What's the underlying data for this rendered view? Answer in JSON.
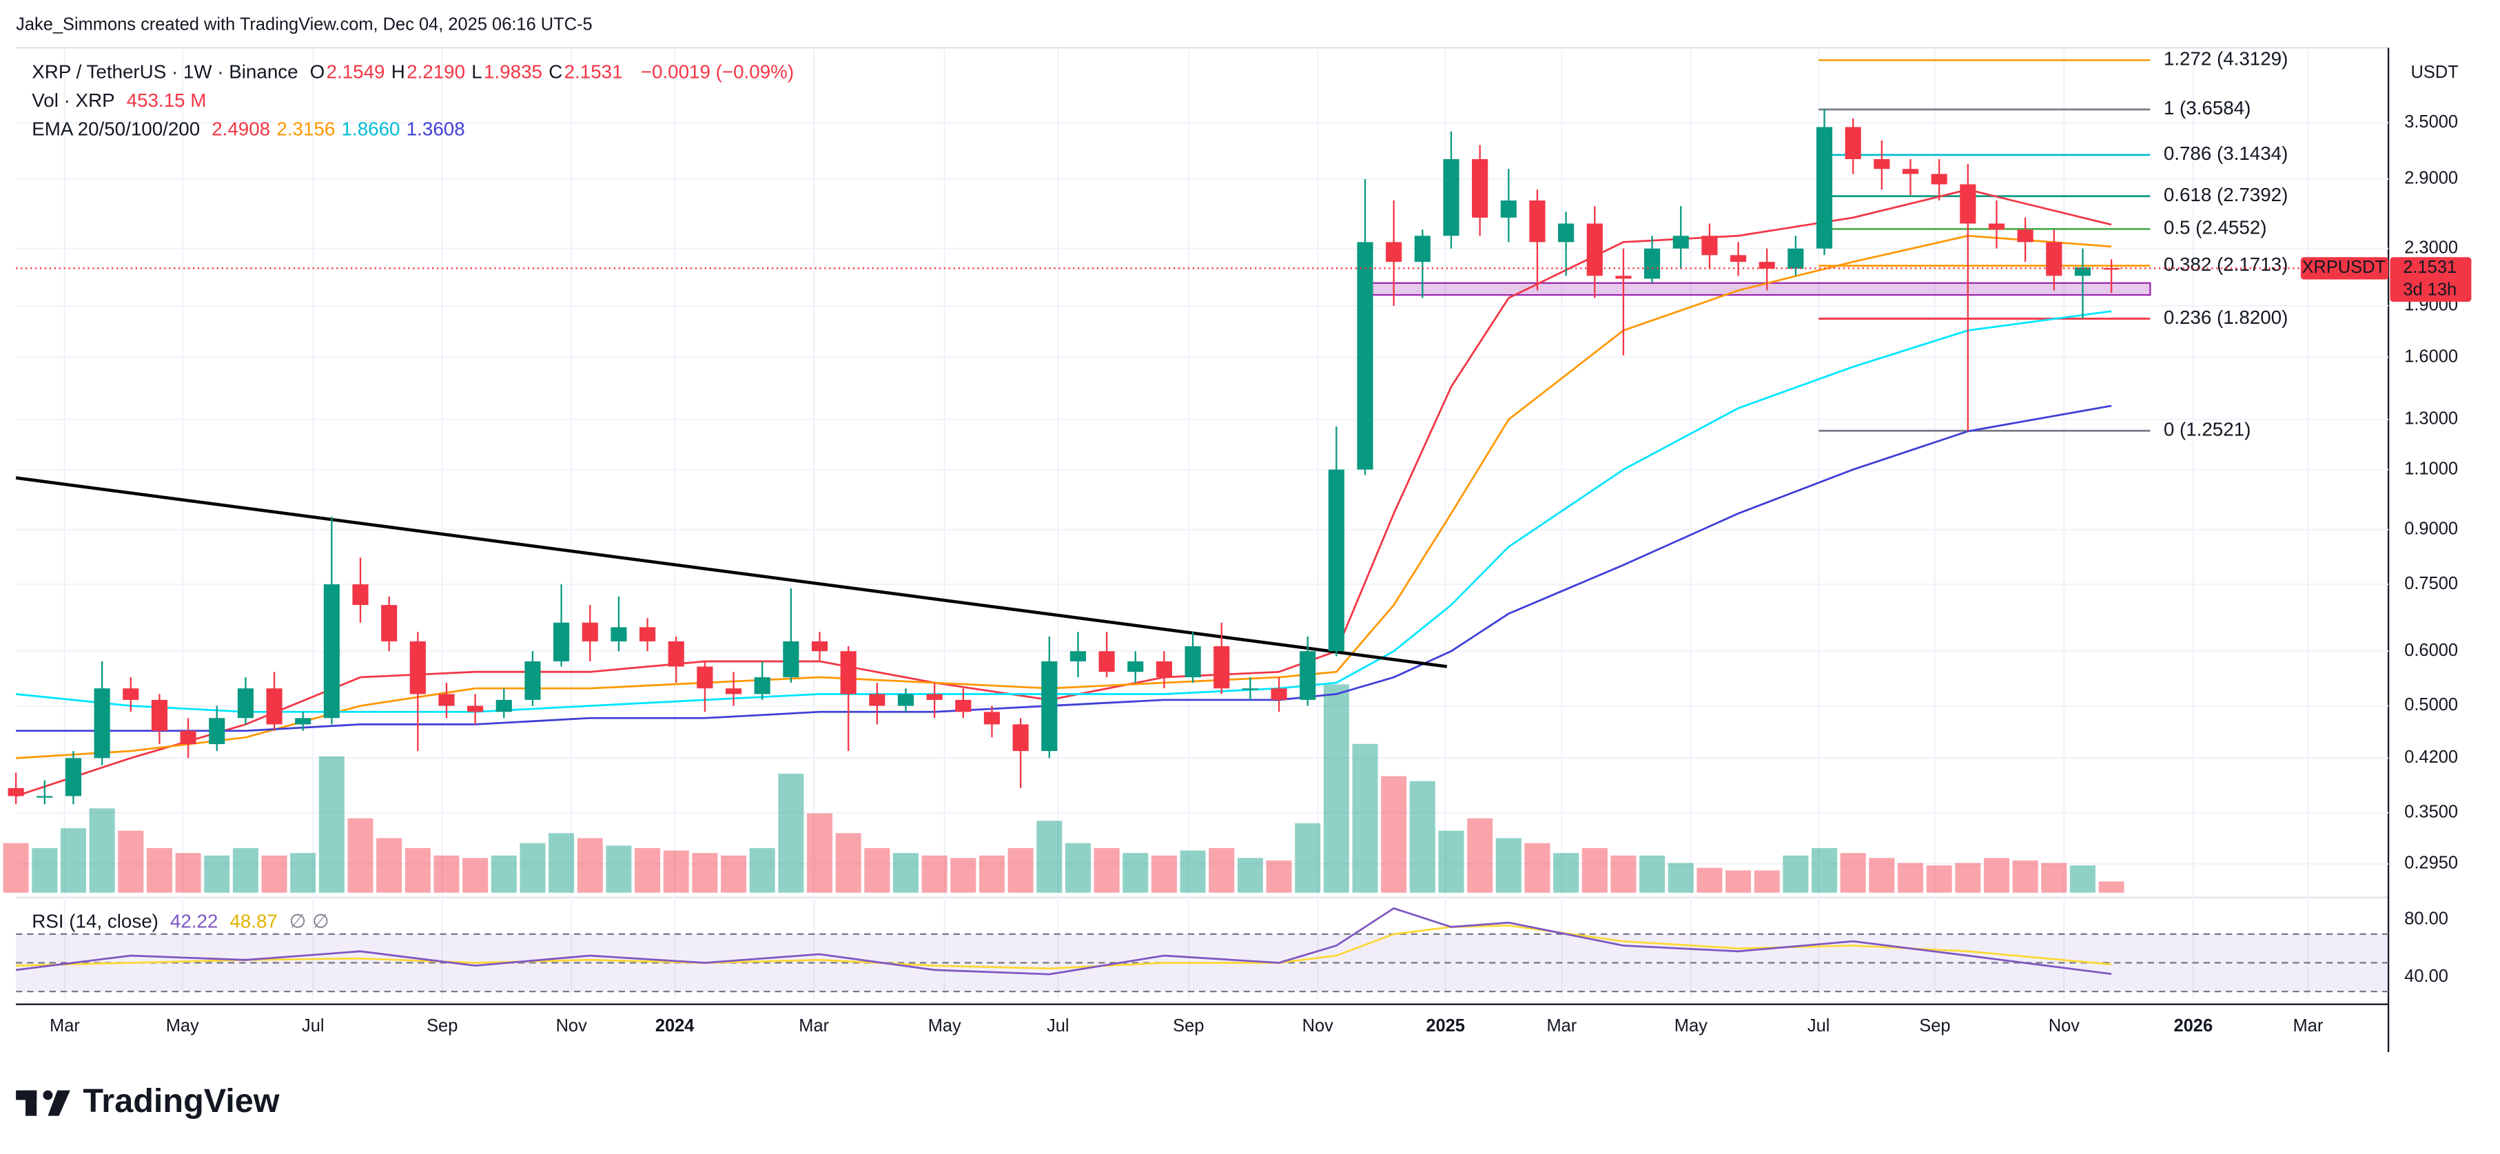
{
  "header": {
    "credit": "Jake_Simmons created with TradingView.com, Dec 04, 2025 06:16 UTC-5"
  },
  "chart_data": {
    "type": "candlestick",
    "title": "XRP / TetherUS · 1W · Binance",
    "ohlc": {
      "labels": [
        "O",
        "H",
        "L",
        "C"
      ],
      "values": [
        2.1549,
        2.219,
        1.9835,
        2.1531
      ],
      "value_labels": [
        "2.1549",
        "2.2190",
        "1.9835",
        "2.1531"
      ],
      "change": "−0.0019 (−0.09%)"
    },
    "volume_legend": {
      "label": "Vol · XRP",
      "value": "453.15 M"
    },
    "ema_legend": {
      "label": "EMA 20/50/100/200",
      "value_labels": [
        "2.4908",
        "2.3156",
        "1.8660",
        "1.3608"
      ]
    },
    "unit": "USDT",
    "symbol_tag": {
      "symbol": "XRPUSDT",
      "price": "2.1531",
      "countdown": "3d 13h"
    },
    "log_scale": true,
    "grid": true,
    "up_color": "#089981",
    "down_color": "#f23645",
    "x": [
      0,
      2,
      4,
      6,
      8,
      10,
      12,
      14,
      16,
      18,
      20,
      22,
      24,
      26,
      28,
      30,
      32,
      34,
      36,
      38,
      40,
      42,
      44,
      46,
      48,
      50,
      52,
      54,
      56,
      58,
      60,
      62,
      64,
      66,
      68,
      70,
      72,
      74,
      76,
      78,
      80,
      82,
      84,
      86,
      88,
      90,
      92,
      94,
      96,
      98,
      100,
      102,
      104,
      106,
      108,
      110,
      112,
      114,
      116,
      118,
      120,
      122,
      124,
      126,
      128,
      130,
      132,
      134,
      136,
      138,
      140,
      142,
      144,
      146
    ],
    "open": [
      0.38,
      0.37,
      0.37,
      0.42,
      0.53,
      0.51,
      0.46,
      0.44,
      0.48,
      0.53,
      0.47,
      0.48,
      0.75,
      0.7,
      0.62,
      0.52,
      0.5,
      0.49,
      0.51,
      0.58,
      0.66,
      0.62,
      0.65,
      0.62,
      0.57,
      0.53,
      0.52,
      0.55,
      0.62,
      0.6,
      0.52,
      0.5,
      0.52,
      0.51,
      0.49,
      0.47,
      0.43,
      0.58,
      0.6,
      0.56,
      0.58,
      0.55,
      0.61,
      0.53,
      0.53,
      0.51,
      0.6,
      1.1,
      2.35,
      2.2,
      2.4,
      3.1,
      2.55,
      2.7,
      2.35,
      2.5,
      2.1,
      2.08,
      2.3,
      2.4,
      2.25,
      2.2,
      2.15,
      2.3,
      3.45,
      3.1,
      3.0,
      2.95,
      2.85,
      2.5,
      2.45,
      2.35,
      2.1,
      2.1549
    ],
    "high": [
      0.4,
      0.39,
      0.43,
      0.58,
      0.55,
      0.52,
      0.48,
      0.5,
      0.55,
      0.56,
      0.49,
      0.94,
      0.82,
      0.72,
      0.64,
      0.54,
      0.52,
      0.53,
      0.6,
      0.75,
      0.7,
      0.72,
      0.67,
      0.63,
      0.58,
      0.56,
      0.58,
      0.74,
      0.64,
      0.61,
      0.54,
      0.53,
      0.54,
      0.53,
      0.5,
      0.48,
      0.63,
      0.64,
      0.64,
      0.6,
      0.6,
      0.64,
      0.66,
      0.55,
      0.55,
      0.63,
      1.27,
      2.9,
      2.7,
      2.45,
      3.4,
      3.25,
      3.0,
      2.8,
      2.6,
      2.65,
      2.3,
      2.4,
      2.65,
      2.5,
      2.35,
      2.3,
      2.4,
      3.66,
      3.55,
      3.3,
      3.1,
      3.1,
      3.05,
      2.7,
      2.55,
      2.45,
      2.3,
      2.219
    ],
    "low": [
      0.36,
      0.36,
      0.36,
      0.41,
      0.49,
      0.44,
      0.42,
      0.43,
      0.47,
      0.46,
      0.46,
      0.47,
      0.66,
      0.6,
      0.43,
      0.48,
      0.47,
      0.48,
      0.5,
      0.57,
      0.58,
      0.6,
      0.6,
      0.54,
      0.49,
      0.5,
      0.51,
      0.54,
      0.58,
      0.43,
      0.47,
      0.49,
      0.48,
      0.48,
      0.45,
      0.38,
      0.42,
      0.55,
      0.55,
      0.54,
      0.53,
      0.54,
      0.52,
      0.51,
      0.49,
      0.5,
      0.59,
      1.08,
      1.9,
      1.95,
      2.3,
      2.4,
      2.35,
      2.0,
      2.1,
      1.95,
      1.61,
      2.05,
      2.15,
      2.15,
      2.1,
      2.0,
      2.1,
      2.25,
      2.95,
      2.8,
      2.75,
      2.7,
      1.25,
      2.3,
      2.2,
      2.0,
      1.82,
      1.9835
    ],
    "close": [
      0.37,
      0.37,
      0.42,
      0.53,
      0.51,
      0.46,
      0.44,
      0.48,
      0.53,
      0.47,
      0.48,
      0.75,
      0.7,
      0.62,
      0.52,
      0.5,
      0.49,
      0.51,
      0.58,
      0.66,
      0.62,
      0.65,
      0.62,
      0.57,
      0.53,
      0.52,
      0.55,
      0.62,
      0.6,
      0.52,
      0.5,
      0.52,
      0.51,
      0.49,
      0.47,
      0.43,
      0.58,
      0.6,
      0.56,
      0.58,
      0.55,
      0.61,
      0.53,
      0.53,
      0.51,
      0.6,
      1.1,
      2.35,
      2.2,
      2.4,
      3.1,
      2.55,
      2.7,
      2.35,
      2.5,
      2.1,
      2.08,
      2.3,
      2.4,
      2.25,
      2.2,
      2.15,
      2.3,
      3.45,
      3.1,
      3.0,
      2.95,
      2.85,
      2.5,
      2.45,
      2.35,
      2.1,
      2.16,
      2.1531
    ],
    "volume": [
      2000,
      1800,
      2600,
      3400,
      2500,
      1800,
      1600,
      1500,
      1800,
      1500,
      1600,
      5500,
      3000,
      2200,
      1800,
      1500,
      1400,
      1500,
      2000,
      2400,
      2200,
      1900,
      1800,
      1700,
      1600,
      1500,
      1800,
      4800,
      3200,
      2400,
      1800,
      1600,
      1500,
      1400,
      1500,
      1800,
      2900,
      2000,
      1800,
      1600,
      1500,
      1700,
      1800,
      1400,
      1300,
      2800,
      8400,
      6000,
      4700,
      4500,
      2500,
      3000,
      2200,
      2000,
      1600,
      1800,
      1500,
      1500,
      1200,
      1000,
      900,
      900,
      1500,
      1800,
      1600,
      1400,
      1200,
      1100,
      1200,
      1400,
      1300,
      1200,
      1100,
      453.15
    ],
    "vlim": [
      0,
      9000
    ],
    "ema": {
      "x": [
        0,
        8,
        16,
        24,
        32,
        40,
        48,
        56,
        64,
        72,
        80,
        88,
        92,
        96,
        100,
        104,
        112,
        120,
        128,
        136,
        146
      ],
      "series": [
        {
          "color": "#f23645",
          "values": [
            0.37,
            0.42,
            0.47,
            0.55,
            0.56,
            0.56,
            0.58,
            0.58,
            0.54,
            0.51,
            0.55,
            0.56,
            0.6,
            0.95,
            1.45,
            1.95,
            2.35,
            2.4,
            2.55,
            2.8,
            2.4908
          ]
        },
        {
          "color": "#ff9800",
          "values": [
            0.42,
            0.43,
            0.45,
            0.5,
            0.53,
            0.53,
            0.54,
            0.55,
            0.54,
            0.53,
            0.54,
            0.55,
            0.56,
            0.7,
            0.95,
            1.3,
            1.75,
            2.0,
            2.2,
            2.4,
            2.3156
          ]
        },
        {
          "color": "#00e5ff",
          "values": [
            0.52,
            0.5,
            0.49,
            0.49,
            0.49,
            0.5,
            0.51,
            0.52,
            0.52,
            0.52,
            0.52,
            0.53,
            0.54,
            0.6,
            0.7,
            0.85,
            1.1,
            1.35,
            1.55,
            1.75,
            1.866
          ]
        },
        {
          "color": "#3f3fd8",
          "values": [
            0.46,
            0.46,
            0.46,
            0.47,
            0.47,
            0.48,
            0.48,
            0.49,
            0.49,
            0.5,
            0.51,
            0.51,
            0.52,
            0.55,
            0.6,
            0.68,
            0.8,
            0.95,
            1.1,
            1.25,
            1.3608
          ]
        }
      ]
    },
    "xlim": [
      0,
      165.3
    ],
    "xticks": [
      {
        "value": 3.4,
        "label": "Mar"
      },
      {
        "value": 11.6,
        "label": "May"
      },
      {
        "value": 20.7,
        "label": "Jul"
      },
      {
        "value": 29.7,
        "label": "Sep"
      },
      {
        "value": 38.7,
        "label": "Nov"
      },
      {
        "value": 45.9,
        "label": "2024"
      },
      {
        "value": 55.6,
        "label": "Mar"
      },
      {
        "value": 64.7,
        "label": "May"
      },
      {
        "value": 72.6,
        "label": "Jul"
      },
      {
        "value": 81.7,
        "label": "Sep"
      },
      {
        "value": 90.7,
        "label": "Nov"
      },
      {
        "value": 99.6,
        "label": "2025"
      },
      {
        "value": 107.7,
        "label": "Mar"
      },
      {
        "value": 116.7,
        "label": "May"
      },
      {
        "value": 125.6,
        "label": "Jul"
      },
      {
        "value": 133.7,
        "label": "Sep"
      },
      {
        "value": 142.7,
        "label": "Nov"
      },
      {
        "value": 151.7,
        "label": "2026"
      },
      {
        "value": 159.7,
        "label": "Mar"
      }
    ],
    "ylim": [
      0.268,
      4.494
    ],
    "yticks": [
      {
        "value": 3.5,
        "label": "3.5000"
      },
      {
        "value": 2.9,
        "label": "2.9000"
      },
      {
        "value": 2.3,
        "label": "2.3000"
      },
      {
        "value": 1.9,
        "label": "1.9000"
      },
      {
        "value": 1.6,
        "label": "1.6000"
      },
      {
        "value": 1.3,
        "label": "1.3000"
      },
      {
        "value": 1.1,
        "label": "1.1000"
      },
      {
        "value": 0.9,
        "label": "0.9000"
      },
      {
        "value": 0.75,
        "label": "0.7500"
      },
      {
        "value": 0.6,
        "label": "0.6000"
      },
      {
        "value": 0.5,
        "label": "0.5000"
      },
      {
        "value": 0.42,
        "label": "0.4200"
      },
      {
        "value": 0.35,
        "label": "0.3500"
      },
      {
        "value": 0.295,
        "label": "0.2950"
      }
    ],
    "trendline": {
      "x": [
        0,
        99.7
      ],
      "y": [
        1.07,
        0.57
      ]
    },
    "zone": {
      "x": [
        94,
        148.7
      ],
      "y": [
        1.97,
        2.05
      ],
      "color": "#9c27b0"
    },
    "fib": {
      "x": [
        125.6,
        148.7
      ],
      "levels": [
        {
          "label": "1.272 (4.3129)",
          "value": 4.3129,
          "color": "#f7a21b"
        },
        {
          "label": "1 (3.6584)",
          "value": 3.6584,
          "color": "#787b86"
        },
        {
          "label": "0.786 (3.1434)",
          "value": 3.1434,
          "color": "#00bcd4"
        },
        {
          "label": "0.618 (2.7392)",
          "value": 2.7392,
          "color": "#089981"
        },
        {
          "label": "0.5 (2.4552)",
          "value": 2.4552,
          "color": "#4caf50"
        },
        {
          "label": "0.382 (2.1713)",
          "value": 2.1713,
          "color": "#ff9800"
        },
        {
          "label": "0.236 (1.8200)",
          "value": 1.82,
          "color": "#f23645"
        },
        {
          "label": "0 (1.2521)",
          "value": 1.2521,
          "color": "#787b86"
        }
      ]
    },
    "rsi": {
      "title": "RSI (14, close)",
      "flags": [
        "∅",
        "∅"
      ],
      "x": [
        0,
        8,
        16,
        24,
        32,
        40,
        48,
        56,
        64,
        72,
        80,
        88,
        92,
        96,
        100,
        104,
        112,
        120,
        128,
        136,
        146
      ],
      "values": [
        45,
        55,
        52,
        58,
        48,
        55,
        50,
        56,
        45,
        42,
        55,
        50,
        62,
        88,
        75,
        78,
        62,
        58,
        65,
        55,
        42.22
      ],
      "ma": [
        48,
        50,
        52,
        53,
        50,
        52,
        50,
        52,
        48,
        46,
        50,
        50,
        55,
        70,
        75,
        76,
        65,
        60,
        62,
        58,
        48.87
      ],
      "color": "#7e57c2",
      "ma_color": "#fdd835",
      "ylim": [
        24.4,
        91.1
      ],
      "yticks": [
        {
          "value": 80,
          "label": "80.00"
        },
        {
          "value": 40,
          "label": "40.00"
        }
      ],
      "levels": [
        70,
        50,
        30
      ]
    }
  },
  "footer": {
    "logo": "TradingView"
  }
}
